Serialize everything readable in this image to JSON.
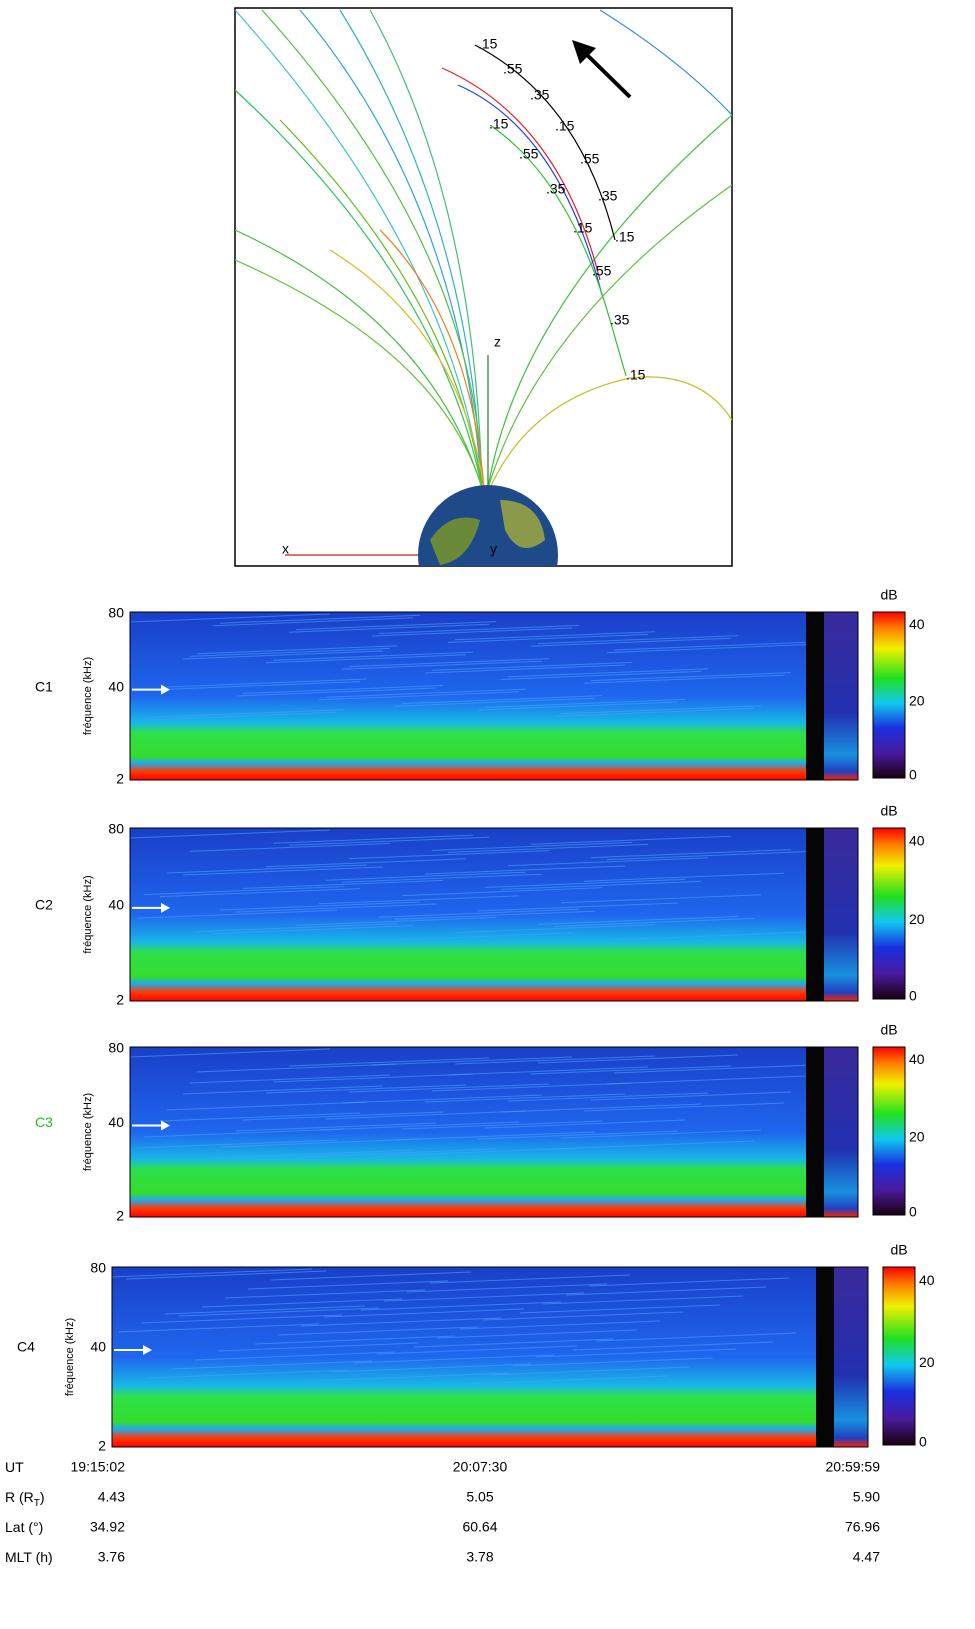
{
  "diagram": {
    "axes": {
      "z": "z",
      "x": "x",
      "y": "y"
    },
    "labels": [
      ".15",
      ".55",
      ".35",
      ".15",
      ".55",
      ".35",
      ".15",
      ".15",
      ".55",
      ".35",
      ".15",
      ".55",
      ".35",
      ".15"
    ]
  },
  "panels": [
    {
      "name": "C1",
      "y_label": "fréquence (kHz)",
      "y_ticks": [
        "80",
        "40",
        "2"
      ],
      "colorbar_unit": "dB",
      "colorbar_ticks": [
        "40",
        "20",
        "0"
      ]
    },
    {
      "name": "C2",
      "y_label": "fréquence (kHz)",
      "y_ticks": [
        "80",
        "40",
        "2"
      ],
      "colorbar_unit": "dB",
      "colorbar_ticks": [
        "40",
        "20",
        "0"
      ]
    },
    {
      "name": "C3",
      "y_label": "fréquence (kHz)",
      "y_ticks": [
        "80",
        "40",
        "2"
      ],
      "colorbar_unit": "dB",
      "colorbar_ticks": [
        "40",
        "20",
        "0"
      ]
    },
    {
      "name": "C4",
      "y_label": "fréquence (kHz)",
      "y_ticks": [
        "80",
        "40",
        "2"
      ],
      "colorbar_unit": "dB",
      "colorbar_ticks": [
        "40",
        "20",
        "0"
      ]
    }
  ],
  "table": {
    "rows": [
      {
        "label": [
          "UT"
        ],
        "cells": [
          "19:15:02",
          "20:07:30",
          "20:59:59"
        ]
      },
      {
        "label": [
          "R (R",
          "T",
          ")"
        ],
        "cells": [
          "4.43",
          "5.05",
          "5.90"
        ]
      },
      {
        "label": [
          "Lat (°)"
        ],
        "cells": [
          "34.92",
          "60.64",
          "76.96"
        ]
      },
      {
        "label": [
          "MLT (h)"
        ],
        "cells": [
          "3.76",
          "3.78",
          "4.47"
        ]
      }
    ]
  }
}
